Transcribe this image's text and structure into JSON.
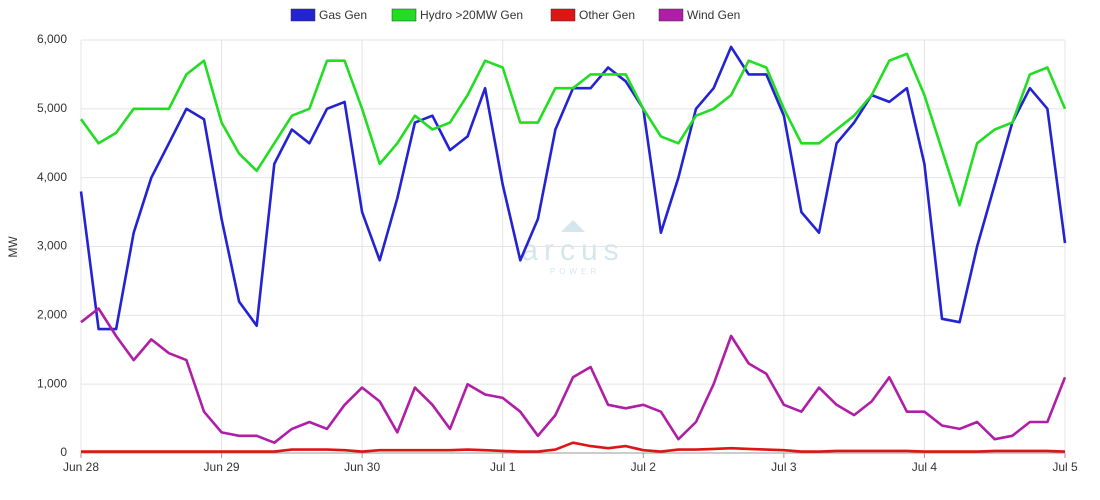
{
  "chart_data": {
    "type": "line",
    "ylabel": "MW",
    "watermark": [
      "arcus",
      "POWER"
    ],
    "categories": [
      "Jun 28",
      null,
      null,
      null,
      null,
      null,
      null,
      null,
      "Jun 29",
      null,
      null,
      null,
      null,
      null,
      null,
      null,
      "Jun 30",
      null,
      null,
      null,
      null,
      null,
      null,
      null,
      "Jul 1",
      null,
      null,
      null,
      null,
      null,
      null,
      null,
      "Jul 2",
      null,
      null,
      null,
      null,
      null,
      null,
      null,
      "Jul 3",
      null,
      null,
      null,
      null,
      null,
      null,
      null,
      "Jul 4",
      null,
      null,
      null,
      null,
      null,
      null,
      null,
      "Jul 5"
    ],
    "ylim": [
      0,
      6000
    ],
    "yticks": [
      0,
      {
        "value": 1000,
        "label": "1,000"
      },
      {
        "value": 2000,
        "label": "2,000"
      },
      {
        "value": 3000,
        "label": "3,000"
      },
      {
        "value": 4000,
        "label": "4,000"
      },
      {
        "value": 5000,
        "label": "5,000"
      },
      {
        "value": 6000,
        "label": "6,000"
      }
    ],
    "grid": true,
    "legend": "top",
    "series": [
      {
        "name": "Gas Gen",
        "color": "#2323d4",
        "values": [
          3800,
          1800,
          1800,
          3200,
          4000,
          4500,
          5000,
          4850,
          3400,
          2200,
          1850,
          4200,
          4700,
          4500,
          5000,
          5100,
          3500,
          2800,
          3700,
          4800,
          4900,
          4400,
          4600,
          5300,
          3900,
          2800,
          3400,
          4700,
          5300,
          5300,
          5600,
          5400,
          5000,
          3200,
          4000,
          5000,
          5300,
          5900,
          5500,
          5500,
          4900,
          3500,
          3200,
          4500,
          4800,
          5200,
          5100,
          5300,
          4200,
          1950,
          1900,
          3000,
          3900,
          4800,
          5300,
          5000,
          3050
        ]
      },
      {
        "name": "Hydro >20MW Gen",
        "color": "#22dd22",
        "values": [
          4850,
          4500,
          4650,
          5000,
          5000,
          5000,
          5500,
          5700,
          4800,
          4350,
          4100,
          4500,
          4900,
          5000,
          5700,
          5700,
          5000,
          4200,
          4500,
          4900,
          4700,
          4800,
          5200,
          5700,
          5600,
          4800,
          4800,
          5300,
          5300,
          5500,
          5500,
          5500,
          5000,
          4600,
          4500,
          4900,
          5000,
          5200,
          5700,
          5600,
          5000,
          4500,
          4500,
          4700,
          4900,
          5200,
          5700,
          5800,
          5200,
          4400,
          3600,
          4500,
          4700,
          4800,
          5500,
          5600,
          5000
        ]
      },
      {
        "name": "Other Gen",
        "color": "#dd1515",
        "values": [
          20,
          20,
          20,
          20,
          20,
          20,
          20,
          20,
          20,
          20,
          20,
          20,
          50,
          50,
          50,
          40,
          20,
          40,
          40,
          40,
          40,
          40,
          50,
          40,
          30,
          20,
          20,
          50,
          150,
          100,
          70,
          100,
          40,
          20,
          50,
          50,
          60,
          70,
          60,
          50,
          40,
          20,
          20,
          30,
          30,
          30,
          30,
          30,
          20,
          20,
          20,
          20,
          30,
          30,
          30,
          30,
          20
        ]
      },
      {
        "name": "Wind Gen",
        "color": "#b01ea6",
        "values": [
          1900,
          2100,
          1700,
          1350,
          1650,
          1450,
          1350,
          600,
          300,
          250,
          250,
          150,
          350,
          450,
          350,
          700,
          950,
          750,
          300,
          950,
          700,
          350,
          1000,
          850,
          800,
          600,
          250,
          550,
          1100,
          1250,
          700,
          650,
          700,
          600,
          200,
          450,
          1000,
          1700,
          1300,
          1150,
          700,
          600,
          950,
          700,
          550,
          750,
          1100,
          600,
          600,
          400,
          350,
          450,
          200,
          250,
          450,
          450,
          1100
        ]
      }
    ]
  }
}
